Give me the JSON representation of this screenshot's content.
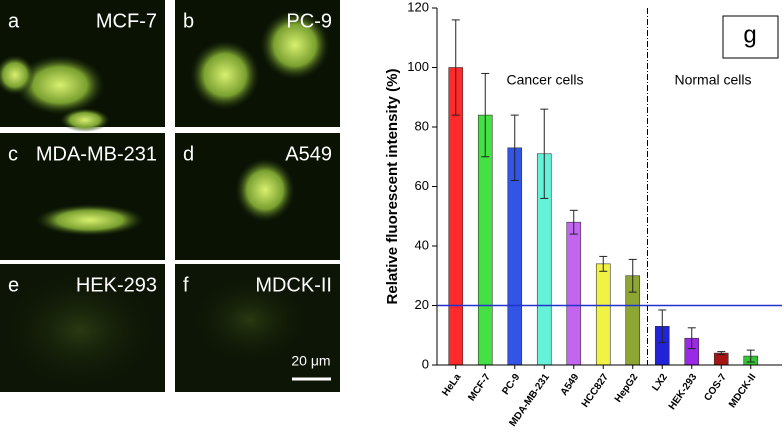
{
  "panels": [
    {
      "letter": "a",
      "label": "MCF-7"
    },
    {
      "letter": "b",
      "label": "PC-9"
    },
    {
      "letter": "c",
      "label": "MDA-MB-231"
    },
    {
      "letter": "d",
      "label": "A549"
    },
    {
      "letter": "e",
      "label": "HEK-293"
    },
    {
      "letter": "f",
      "label": "MDCK-II"
    }
  ],
  "scale_bar": "20 μm",
  "chart_data": {
    "type": "bar",
    "panel_label": "g",
    "y_label": "Relative fluorescent intensity (%)",
    "annotations": [
      "Cancer cells",
      "Normal cells"
    ],
    "categories": [
      "HeLa",
      "MCF-7",
      "PC-9",
      "MDA-MB-231",
      "A549",
      "HCC827",
      "HepG2",
      "LX2",
      "HEK-293",
      "COS-7",
      "MDCK-II"
    ],
    "values": [
      100,
      84,
      73,
      71,
      48,
      34,
      30,
      13,
      9,
      4,
      3
    ],
    "errors": [
      16,
      14,
      11,
      15,
      4,
      2.5,
      5.5,
      5.5,
      3.5,
      0.5,
      2
    ],
    "colors": [
      "#ff2a2a",
      "#44e044",
      "#3355e6",
      "#66f2d8",
      "#c266f2",
      "#f2f244",
      "#8ea634",
      "#2222d6",
      "#9a2ae6",
      "#a81414",
      "#36c436"
    ],
    "reference_line": 20,
    "reference_color": "#2233cc",
    "ylim": [
      0,
      120
    ],
    "yticks": [
      0,
      20,
      40,
      60,
      80,
      100,
      120
    ]
  }
}
